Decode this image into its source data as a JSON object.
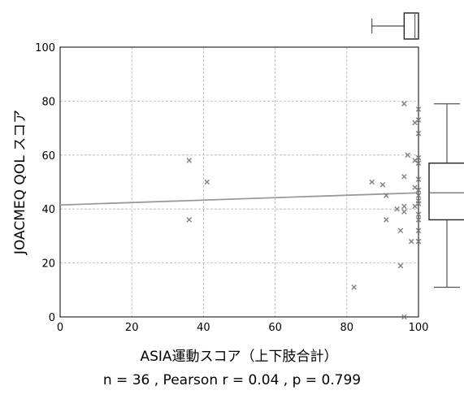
{
  "chart_data": {
    "type": "scatter",
    "xlabel": "ASIA運動スコア（上下肢合計）",
    "ylabel": "JOACMEQ QOL スコア",
    "xlim": [
      0,
      100
    ],
    "ylim": [
      0,
      100
    ],
    "xticks": [
      "0",
      "20",
      "40",
      "60",
      "80",
      "100"
    ],
    "yticks": [
      "0",
      "20",
      "40",
      "60",
      "80",
      "100"
    ],
    "grid": true,
    "marker": "x",
    "marker_color": "#808080",
    "fit_line_color": "#999999",
    "series": [
      {
        "points": [
          [
            36,
            58
          ],
          [
            36,
            36
          ],
          [
            41,
            50
          ],
          [
            82,
            11
          ],
          [
            87,
            50
          ],
          [
            90,
            49
          ],
          [
            91,
            45
          ],
          [
            91,
            36
          ],
          [
            94,
            40
          ],
          [
            95,
            32
          ],
          [
            95,
            19
          ],
          [
            96,
            79
          ],
          [
            96,
            52
          ],
          [
            96,
            41
          ],
          [
            96,
            39
          ],
          [
            96,
            0
          ],
          [
            97,
            60
          ],
          [
            98,
            28
          ],
          [
            99,
            72
          ],
          [
            99,
            58
          ],
          [
            99,
            48
          ],
          [
            99,
            41
          ],
          [
            100,
            77
          ],
          [
            100,
            73
          ],
          [
            100,
            68
          ],
          [
            100,
            59
          ],
          [
            100,
            57
          ],
          [
            100,
            51
          ],
          [
            100,
            47
          ],
          [
            100,
            45
          ],
          [
            100,
            43
          ],
          [
            100,
            42
          ],
          [
            100,
            38
          ],
          [
            100,
            36
          ],
          [
            100,
            32
          ],
          [
            100,
            28
          ]
        ]
      }
    ],
    "fit_line": {
      "x": [
        0,
        100
      ],
      "y": [
        41.5,
        46.0
      ]
    },
    "boxplot_x": {
      "min": 87,
      "q1": 96,
      "median": 99,
      "q3": 100,
      "max": 100
    },
    "boxplot_y": {
      "min": 11,
      "q1": 36,
      "median": 46,
      "q3": 57,
      "max": 79
    }
  },
  "stats": {
    "text": "n = 36 , Pearson  r = 0.04 , p = 0.799"
  }
}
